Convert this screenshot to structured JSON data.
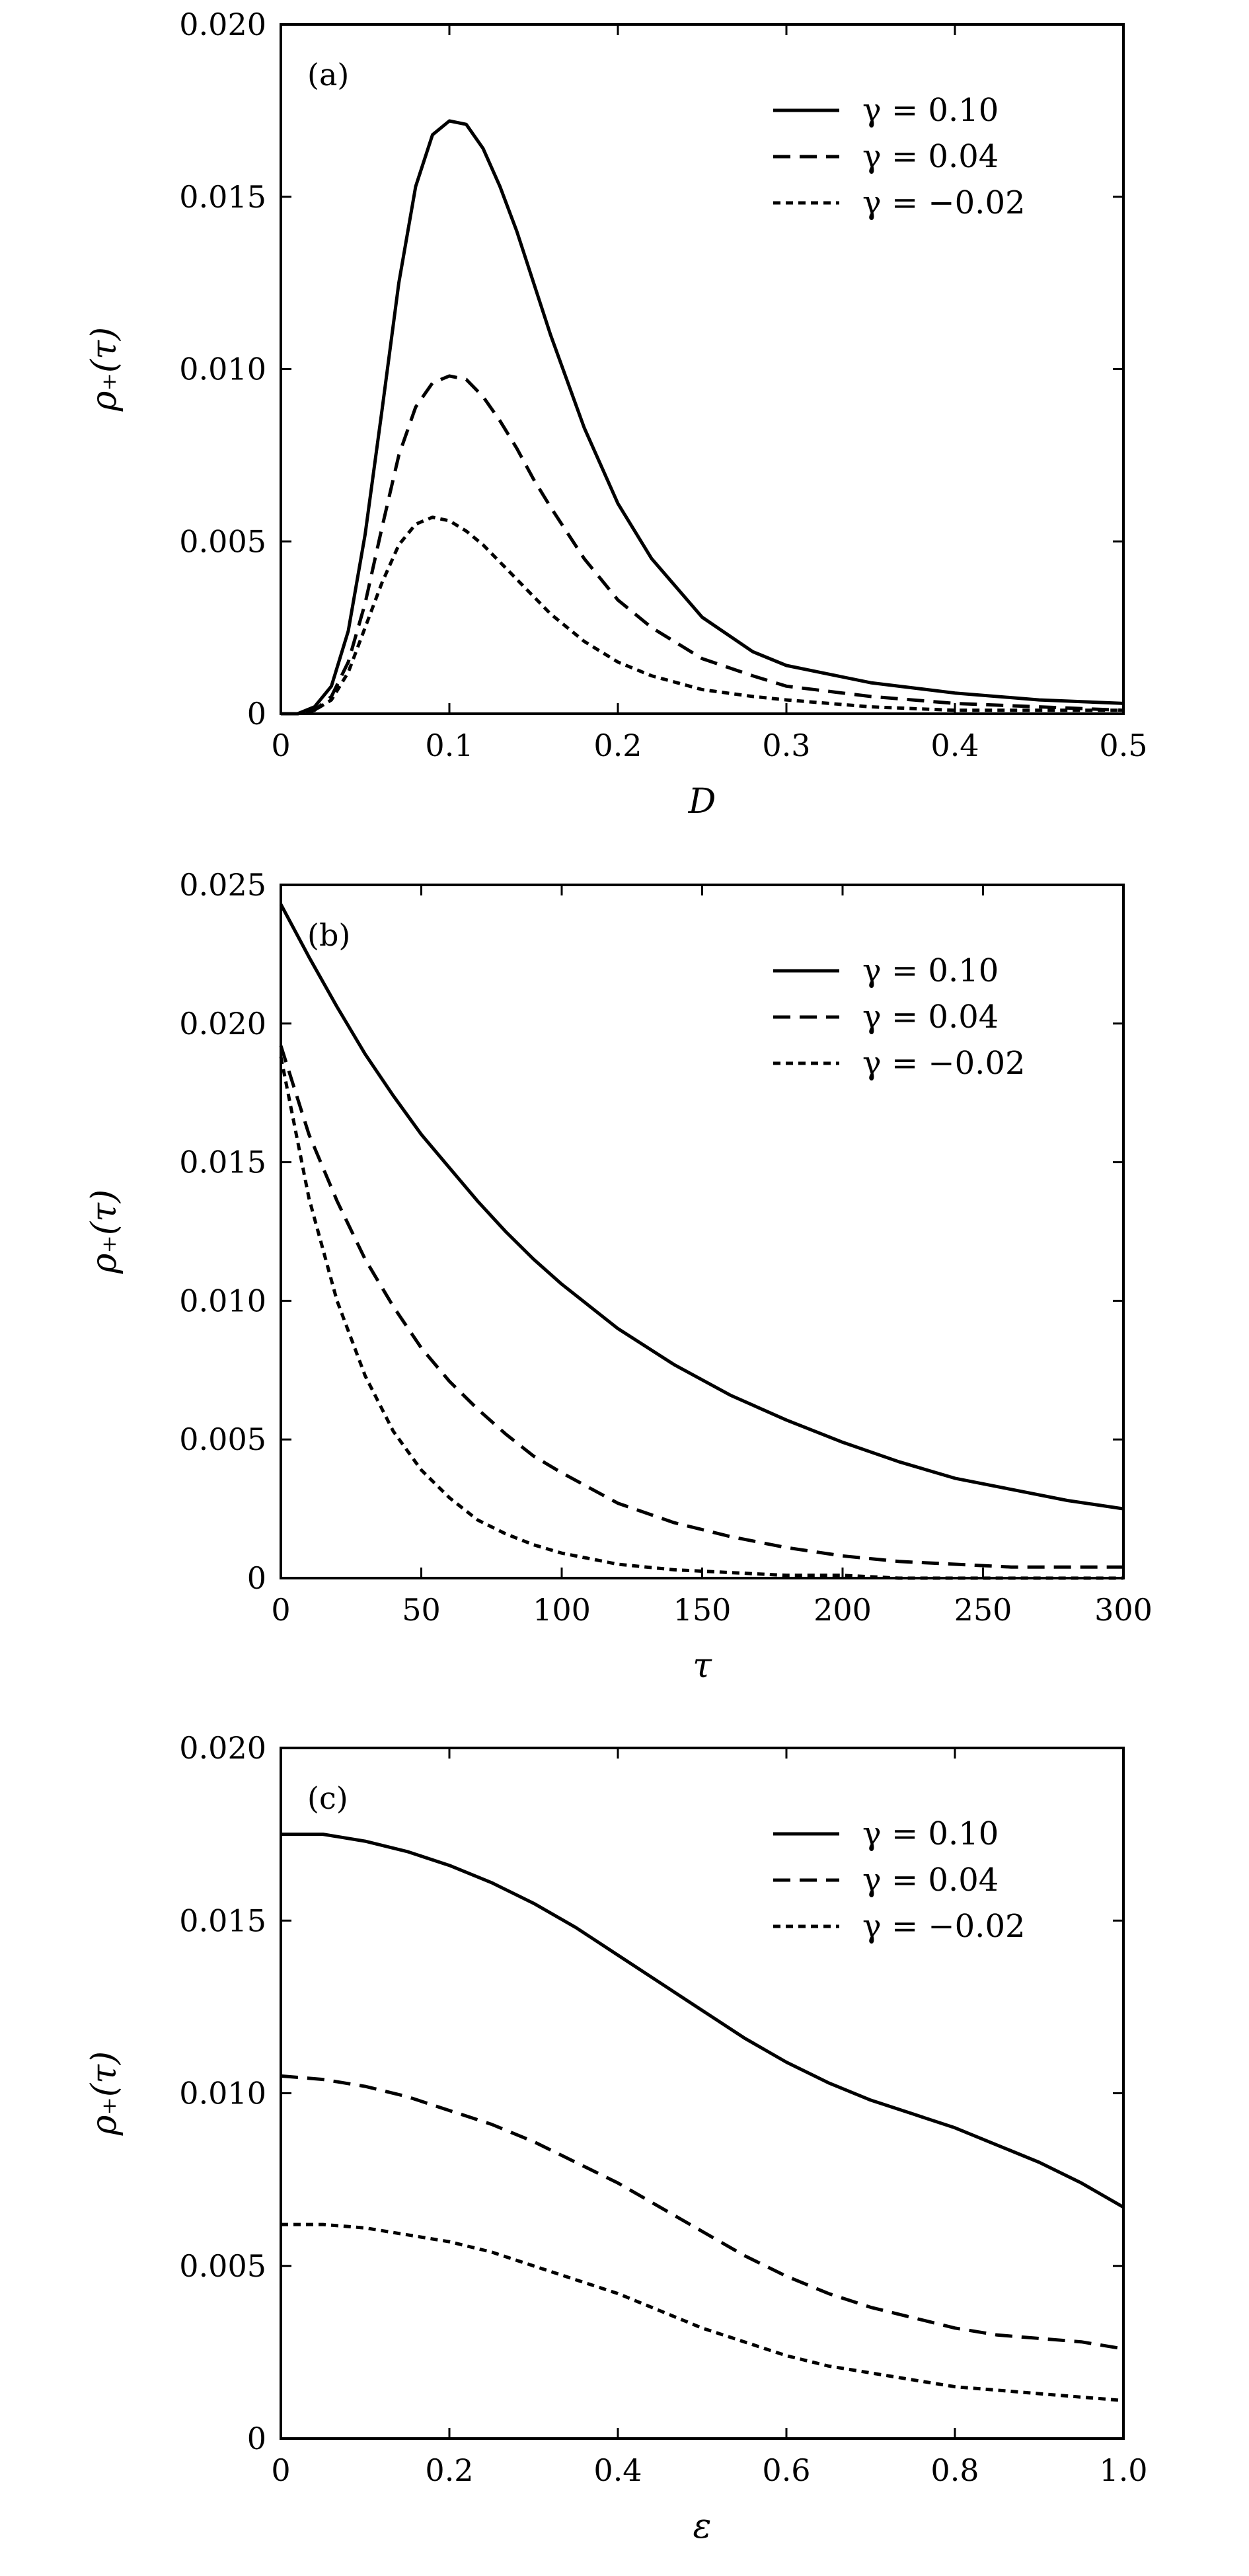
{
  "chart_data": [
    {
      "type": "line",
      "panel_label": "(a)",
      "xlabel": "D",
      "ylabel": "ρ₊(τ)",
      "xlim": [
        0,
        0.5
      ],
      "ylim": [
        0,
        0.02
      ],
      "x_ticks": [
        "0",
        "0.1",
        "0.2",
        "0.3",
        "0.4",
        "0.5"
      ],
      "y_ticks": [
        "0",
        "0.005",
        "0.010",
        "0.015",
        "0.020"
      ],
      "legend_position": "top-right",
      "series": [
        {
          "name": "γ = 0.10",
          "style": "solid",
          "x": [
            0,
            0.01,
            0.02,
            0.03,
            0.04,
            0.05,
            0.06,
            0.07,
            0.08,
            0.09,
            0.1,
            0.11,
            0.12,
            0.13,
            0.14,
            0.15,
            0.16,
            0.18,
            0.2,
            0.22,
            0.25,
            0.28,
            0.3,
            0.35,
            0.4,
            0.45,
            0.5
          ],
          "y": [
            0,
            0.0,
            0.0002,
            0.0008,
            0.0024,
            0.0052,
            0.0088,
            0.0125,
            0.0153,
            0.0168,
            0.0172,
            0.0171,
            0.0164,
            0.0153,
            0.014,
            0.0125,
            0.011,
            0.0083,
            0.0061,
            0.0045,
            0.0028,
            0.0018,
            0.0014,
            0.0009,
            0.0006,
            0.0004,
            0.0003
          ]
        },
        {
          "name": "γ = 0.04",
          "style": "dashed",
          "x": [
            0,
            0.01,
            0.02,
            0.03,
            0.04,
            0.05,
            0.06,
            0.07,
            0.08,
            0.09,
            0.1,
            0.11,
            0.12,
            0.13,
            0.14,
            0.15,
            0.16,
            0.18,
            0.2,
            0.22,
            0.25,
            0.28,
            0.3,
            0.35,
            0.4,
            0.45,
            0.5
          ],
          "y": [
            0,
            0.0,
            0.0001,
            0.0005,
            0.0015,
            0.0032,
            0.0054,
            0.0075,
            0.0089,
            0.0096,
            0.0098,
            0.0097,
            0.0092,
            0.0085,
            0.0077,
            0.0068,
            0.006,
            0.0045,
            0.0033,
            0.0025,
            0.0016,
            0.0011,
            0.0008,
            0.0005,
            0.0003,
            0.0002,
            0.0001
          ]
        },
        {
          "name": "γ = −0.02",
          "style": "dotted",
          "x": [
            0,
            0.01,
            0.02,
            0.03,
            0.04,
            0.05,
            0.06,
            0.07,
            0.08,
            0.09,
            0.1,
            0.11,
            0.12,
            0.13,
            0.14,
            0.15,
            0.16,
            0.18,
            0.2,
            0.22,
            0.25,
            0.28,
            0.3,
            0.35,
            0.4,
            0.45,
            0.5
          ],
          "y": [
            0,
            0.0,
            0.0001,
            0.0004,
            0.0012,
            0.0025,
            0.0038,
            0.0049,
            0.0055,
            0.0057,
            0.0056,
            0.0053,
            0.0049,
            0.0044,
            0.0039,
            0.0034,
            0.0029,
            0.0021,
            0.0015,
            0.0011,
            0.0007,
            0.0005,
            0.0004,
            0.0002,
            0.0001,
            0.0001,
            0.0001
          ]
        }
      ]
    },
    {
      "type": "line",
      "panel_label": "(b)",
      "xlabel": "τ",
      "ylabel": "ρ₊(τ)",
      "xlim": [
        0,
        300
      ],
      "ylim": [
        0,
        0.025
      ],
      "x_ticks": [
        "0",
        "50",
        "100",
        "150",
        "200",
        "250",
        "300"
      ],
      "y_ticks": [
        "0",
        "0.005",
        "0.010",
        "0.015",
        "0.020",
        "0.025"
      ],
      "legend_position": "top-right",
      "series": [
        {
          "name": "γ = 0.10",
          "style": "solid",
          "x": [
            0,
            10,
            20,
            30,
            40,
            50,
            60,
            70,
            80,
            90,
            100,
            120,
            140,
            160,
            180,
            200,
            220,
            240,
            260,
            280,
            300
          ],
          "y": [
            0.0243,
            0.0224,
            0.0206,
            0.0189,
            0.0174,
            0.016,
            0.0148,
            0.0136,
            0.0125,
            0.0115,
            0.0106,
            0.009,
            0.0077,
            0.0066,
            0.0057,
            0.0049,
            0.0042,
            0.0036,
            0.0032,
            0.0028,
            0.0025
          ]
        },
        {
          "name": "γ = 0.04",
          "style": "dashed",
          "x": [
            0,
            10,
            20,
            30,
            40,
            50,
            60,
            70,
            80,
            90,
            100,
            120,
            140,
            160,
            180,
            200,
            220,
            240,
            260,
            280,
            300
          ],
          "y": [
            0.0192,
            0.016,
            0.0136,
            0.0115,
            0.0098,
            0.0083,
            0.0071,
            0.0061,
            0.0052,
            0.0044,
            0.0038,
            0.0027,
            0.002,
            0.0015,
            0.0011,
            0.0008,
            0.0006,
            0.0005,
            0.0004,
            0.0004,
            0.0004
          ]
        },
        {
          "name": "γ = −0.02",
          "style": "dotted",
          "x": [
            0,
            10,
            20,
            30,
            40,
            50,
            60,
            70,
            80,
            90,
            100,
            120,
            140,
            160,
            180,
            200,
            220,
            240,
            260,
            280,
            300
          ],
          "y": [
            0.0188,
            0.0137,
            0.01,
            0.0073,
            0.0053,
            0.0039,
            0.0029,
            0.0021,
            0.0016,
            0.0012,
            0.0009,
            0.0005,
            0.0003,
            0.0002,
            0.0001,
            0.0001,
            0.0,
            0.0,
            0.0,
            0.0,
            0.0
          ]
        }
      ]
    },
    {
      "type": "line",
      "panel_label": "(c)",
      "xlabel": "ε",
      "ylabel": "ρ₊(τ)",
      "xlim": [
        0,
        1.0
      ],
      "ylim": [
        0,
        0.02
      ],
      "x_ticks": [
        "0",
        "0.2",
        "0.4",
        "0.6",
        "0.8",
        "1.0"
      ],
      "y_ticks": [
        "0",
        "0.005",
        "0.010",
        "0.015",
        "0.020"
      ],
      "legend_position": "top-right",
      "series": [
        {
          "name": "γ = 0.10",
          "style": "solid",
          "x": [
            0,
            0.05,
            0.1,
            0.15,
            0.2,
            0.25,
            0.3,
            0.35,
            0.4,
            0.45,
            0.5,
            0.55,
            0.6,
            0.65,
            0.7,
            0.75,
            0.8,
            0.85,
            0.9,
            0.95,
            1.0
          ],
          "y": [
            0.0175,
            0.0175,
            0.0173,
            0.017,
            0.0166,
            0.0161,
            0.0155,
            0.0148,
            0.014,
            0.0132,
            0.0124,
            0.0116,
            0.0109,
            0.0103,
            0.0098,
            0.0094,
            0.009,
            0.0085,
            0.008,
            0.0074,
            0.0067
          ]
        },
        {
          "name": "γ = 0.04",
          "style": "dashed",
          "x": [
            0,
            0.05,
            0.1,
            0.15,
            0.2,
            0.25,
            0.3,
            0.35,
            0.4,
            0.45,
            0.5,
            0.55,
            0.6,
            0.65,
            0.7,
            0.75,
            0.8,
            0.85,
            0.9,
            0.95,
            1.0
          ],
          "y": [
            0.0105,
            0.0104,
            0.0102,
            0.0099,
            0.0095,
            0.0091,
            0.0086,
            0.008,
            0.0074,
            0.0067,
            0.006,
            0.0053,
            0.0047,
            0.0042,
            0.0038,
            0.0035,
            0.0032,
            0.003,
            0.0029,
            0.0028,
            0.0026
          ]
        },
        {
          "name": "γ = −0.02",
          "style": "dotted",
          "x": [
            0,
            0.05,
            0.1,
            0.15,
            0.2,
            0.25,
            0.3,
            0.35,
            0.4,
            0.45,
            0.5,
            0.55,
            0.6,
            0.65,
            0.7,
            0.75,
            0.8,
            0.85,
            0.9,
            0.95,
            1.0
          ],
          "y": [
            0.0062,
            0.0062,
            0.0061,
            0.0059,
            0.0057,
            0.0054,
            0.005,
            0.0046,
            0.0042,
            0.0037,
            0.0032,
            0.0028,
            0.0024,
            0.0021,
            0.0019,
            0.0017,
            0.0015,
            0.0014,
            0.0013,
            0.0012,
            0.0011
          ]
        }
      ]
    }
  ]
}
